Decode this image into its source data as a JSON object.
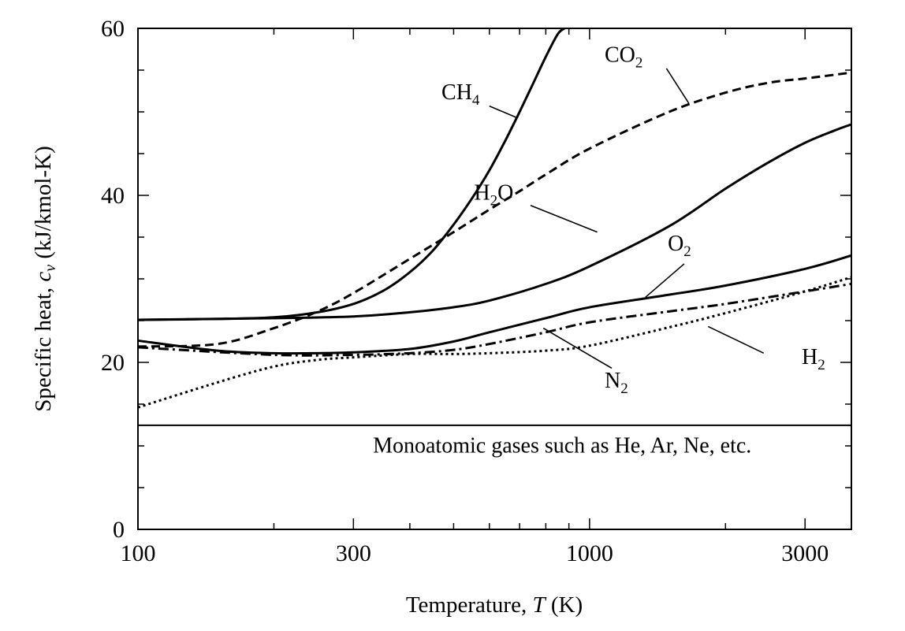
{
  "chart_data": {
    "type": "line",
    "title": "",
    "xlabel": "Temperature, T (K)",
    "xlabel_parts": {
      "prefix": "Temperature, ",
      "var": "T",
      "suffix": " (K)"
    },
    "ylabel": "Specific heat, cv (kJ/kmol-K)",
    "ylabel_parts": {
      "prefix": "Specific heat, ",
      "var": "c",
      "sub": "v",
      "suffix": " (kJ/kmol-K)"
    },
    "x_scale": "log",
    "xlim": [
      100,
      3800
    ],
    "ylim": [
      0,
      60
    ],
    "x_tick_labels": [
      "100",
      "300",
      "1000",
      "3000"
    ],
    "x_ticks": [
      100,
      300,
      1000,
      3000
    ],
    "x_minor_ticks": [
      200,
      400,
      500,
      600,
      700,
      800,
      900,
      2000
    ],
    "y_tick_labels": [
      "0",
      "20",
      "40",
      "60"
    ],
    "y_ticks": [
      0,
      20,
      40,
      60
    ],
    "y_minor_ticks": [
      5,
      10,
      15,
      25,
      30,
      35,
      45,
      50,
      55
    ],
    "grid": false,
    "legend": "none",
    "series": [
      {
        "name": "CH4",
        "label_main": "CH",
        "label_sub": "4",
        "style": "solid",
        "x": [
          100,
          150,
          200,
          250,
          300,
          350,
          400,
          450,
          500,
          550,
          600,
          650,
          700,
          750,
          800,
          850,
          880
        ],
        "y": [
          25.1,
          25.2,
          25.4,
          26.0,
          27.0,
          28.6,
          30.8,
          33.4,
          36.5,
          39.7,
          43.0,
          46.5,
          50.0,
          53.4,
          56.6,
          59.3,
          60.0
        ]
      },
      {
        "name": "CO2",
        "label_main": "CO",
        "label_sub": "2",
        "style": "dashed",
        "x": [
          100,
          150,
          200,
          250,
          300,
          400,
          500,
          600,
          700,
          800,
          1000,
          1500,
          2000,
          2500,
          3000,
          3800
        ],
        "y": [
          21.9,
          22.2,
          24.1,
          26.1,
          28.3,
          32.4,
          35.6,
          38.3,
          40.5,
          42.5,
          45.6,
          50.0,
          52.3,
          53.5,
          54.0,
          54.7
        ]
      },
      {
        "name": "H2O",
        "label_main": "H",
        "label_sub": "2",
        "label_tail": "O",
        "style": "solid",
        "x": [
          100,
          200,
          300,
          400,
          500,
          600,
          800,
          1000,
          1500,
          2000,
          2500,
          3000,
          3500,
          3800
        ],
        "y": [
          25.1,
          25.3,
          25.5,
          26.0,
          26.6,
          27.4,
          29.4,
          31.5,
          36.3,
          40.8,
          44.0,
          46.3,
          47.8,
          48.5
        ]
      },
      {
        "name": "O2",
        "label_main": "O",
        "label_sub": "2",
        "style": "solid",
        "x": [
          100,
          150,
          200,
          250,
          300,
          400,
          500,
          600,
          800,
          1000,
          1500,
          2000,
          3000,
          3800
        ],
        "y": [
          22.6,
          21.4,
          21.1,
          21.1,
          21.2,
          21.6,
          22.5,
          23.6,
          25.3,
          26.6,
          28.1,
          29.2,
          31.2,
          32.8
        ]
      },
      {
        "name": "H2",
        "label_main": "H",
        "label_sub": "2",
        "style": "dotted",
        "x": [
          100,
          150,
          200,
          250,
          300,
          400,
          500,
          600,
          800,
          1000,
          1500,
          2000,
          3000,
          3800
        ],
        "y": [
          14.6,
          17.6,
          19.5,
          20.3,
          20.6,
          21.0,
          21.0,
          21.1,
          21.4,
          22.0,
          24.2,
          25.9,
          28.5,
          30.2
        ]
      },
      {
        "name": "N2",
        "label_main": "N",
        "label_sub": "2",
        "style": "dashdot",
        "x": [
          100,
          200,
          300,
          400,
          500,
          600,
          800,
          1000,
          1500,
          2000,
          3000,
          3800
        ],
        "y": [
          21.8,
          20.9,
          20.9,
          21.1,
          21.5,
          22.2,
          23.6,
          24.8,
          26.1,
          27.0,
          28.5,
          29.4
        ]
      },
      {
        "name": "Monoatomic gases such as He, Ar, Ne, etc.",
        "style": "solid-thin",
        "x": [
          100,
          3800
        ],
        "y": [
          12.47,
          12.47
        ]
      }
    ],
    "annotations": [
      {
        "series": "CH4",
        "text_x": 470,
        "text_y": 51.5,
        "leader_from": [
          600,
          50.7
        ],
        "leader_to": [
          690,
          49.3
        ]
      },
      {
        "series": "CO2",
        "text_x": 1080,
        "text_y": 56.0,
        "leader_from": [
          1480,
          55.2
        ],
        "leader_to": [
          1660,
          51.0
        ]
      },
      {
        "series": "H2O",
        "text_x": 555,
        "text_y": 39.5,
        "leader_from": [
          740,
          38.8
        ],
        "leader_to": [
          1040,
          35.6
        ]
      },
      {
        "series": "O2",
        "text_x": 1490,
        "text_y": 33.4,
        "leader_from": [
          1620,
          31.8
        ],
        "leader_to": [
          1330,
          27.8
        ]
      },
      {
        "series": "H2",
        "text_x": 2950,
        "text_y": 19.8,
        "leader_from": [
          2430,
          21.1
        ],
        "leader_to": [
          1830,
          24.3
        ]
      },
      {
        "series": "N2",
        "text_x": 1080,
        "text_y": 17.0,
        "leader_from": [
          1120,
          19.3
        ],
        "leader_to": [
          790,
          24.1
        ]
      }
    ],
    "mono_label_pos": {
      "x": 870,
      "y": 9.2
    }
  }
}
